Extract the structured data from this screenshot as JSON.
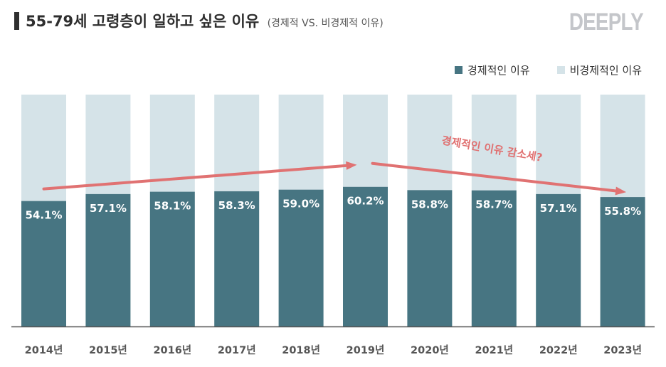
{
  "header": {
    "title": "55-79세 고령층이 일하고 싶은 이유",
    "subtitle": "(경제적 VS. 비경제적 이유)",
    "logo": "DEEPLY"
  },
  "colors": {
    "economic": "#477582",
    "non_economic": "#d5e3e8",
    "trend_arrow": "#e07272",
    "axis": "#555555"
  },
  "chart_data": {
    "type": "bar",
    "stacked": true,
    "categories": [
      "2014년",
      "2015년",
      "2016년",
      "2017년",
      "2018년",
      "2019년",
      "2020년",
      "2021년",
      "2022년",
      "2023년"
    ],
    "series": [
      {
        "name": "경제적인 이유",
        "values": [
          54.1,
          57.1,
          58.1,
          58.3,
          59.0,
          60.2,
          58.8,
          58.7,
          57.1,
          55.8
        ],
        "labels": [
          "54.1%",
          "57.1%",
          "58.1%",
          "58.3%",
          "59.0%",
          "60.2%",
          "58.8%",
          "58.7%",
          "57.1%",
          "55.8%"
        ]
      },
      {
        "name": "비경제적인 이유",
        "values": [
          45.9,
          42.9,
          41.9,
          41.7,
          41.0,
          39.8,
          41.2,
          41.3,
          42.9,
          44.2
        ]
      }
    ],
    "ylim": [
      0,
      100
    ],
    "legend_position": "top-right",
    "annotation": "경제적인 이유 감소세?",
    "trend_arrows": [
      {
        "from": "2014년",
        "to": "2019년",
        "direction": "up"
      },
      {
        "from": "2019년",
        "to": "2023년",
        "direction": "down"
      }
    ]
  }
}
